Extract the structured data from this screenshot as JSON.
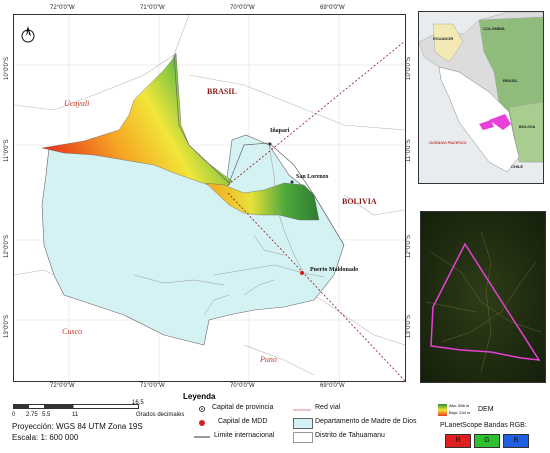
{
  "map": {
    "top_ticks": [
      "72°0'0\"W",
      "71°0'0\"W",
      "70°0'0\"W",
      "69°0'0\"W"
    ],
    "bottom_ticks": [
      "72°0'0\"W",
      "71°0'0\"W",
      "70°0'0\"W",
      "69°0'0\"W"
    ],
    "left_ticks": [
      "10°0'0\"S",
      "11°0'0\"S",
      "12°0'0\"S",
      "13°0'0\"S"
    ],
    "right_ticks": [
      "10°0'0\"S",
      "11°0'0\"S",
      "12°0'0\"S",
      "13°0'0\"S"
    ],
    "regions": {
      "brasil": "BRASIL",
      "bolivia": "BOLIVIA",
      "ucayali": "Ucayali",
      "cusco": "Cusco",
      "puno": "Puno"
    },
    "towns": {
      "inapari": "Iñapari",
      "san_lorenzo": "San Lorenzo",
      "puerto_maldonado": "Puerto Maldonado"
    },
    "north_arrow": "N"
  },
  "inset_country": {
    "ecuador": "ECUADOR",
    "colombia": "COLOMBIA",
    "brasil": "BRASIL",
    "bolivia": "BOLIVIA",
    "ocean": "OCEANO PACIFICO",
    "chile": "CHILE"
  },
  "legend": {
    "title": "Leyenda",
    "capital_provincia": "Capital de provincia",
    "capital_mdd": "Capital de MDD",
    "limite": "Limite internacional",
    "red_vial": "Red vial",
    "departamento": "Departamento de Madre de Dios",
    "distrito": "Distrito de Tahuamanu",
    "dem_label": "DEM",
    "dem_high": "Alto: 556 m",
    "dem_low": "Bajo: 244 m",
    "planet_label": "PLanetScope Bandas RGB:",
    "bands": [
      "R",
      "G",
      "B"
    ]
  },
  "scalebar": {
    "ticks": [
      "0",
      "2.75",
      "5.5",
      "11",
      "16.5"
    ],
    "unit": "Grados decimales",
    "projection": "Proyección: WGS 84 UTM Zona 19S",
    "scale": "Escala: 1: 600 000"
  },
  "colors": {
    "department_fill": "#d4f1f4",
    "boundary_pink": "#e83fd8",
    "dem_high": "#2e8b2e",
    "dem_low": "#e83c1e"
  }
}
